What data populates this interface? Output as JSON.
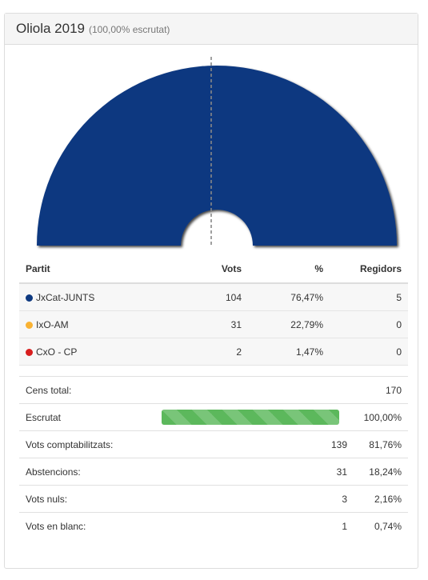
{
  "header": {
    "title": "Oliola 2019",
    "subtitle": "(100,00% escrutat)"
  },
  "chart_data": {
    "type": "pie",
    "subtype": "parliament-semicircle",
    "categories": [
      "JxCat-JUNTS",
      "IxO-AM",
      "CxO - CP"
    ],
    "values": [
      5,
      0,
      0
    ],
    "colors": [
      "#0e3980",
      "#f9b233",
      "#d81e1e"
    ],
    "total_seats": 5
  },
  "results": {
    "headers": {
      "party": "Partit",
      "votes": "Vots",
      "percent": "%",
      "seats": "Regidors"
    },
    "rows": [
      {
        "party": "JxCat-JUNTS",
        "color": "#0e3980",
        "votes": "104",
        "percent": "76,47%",
        "seats": "5"
      },
      {
        "party": "IxO-AM",
        "color": "#f9b233",
        "votes": "31",
        "percent": "22,79%",
        "seats": "0"
      },
      {
        "party": "CxO - CP",
        "color": "#d81e1e",
        "votes": "2",
        "percent": "1,47%",
        "seats": "0"
      }
    ]
  },
  "stats": {
    "census_label": "Cens total:",
    "census_value": "170",
    "scrutiny_label": "Escrutat",
    "scrutiny_value": "100,00%",
    "scrutiny_fraction": 1.0,
    "counted_label": "Vots comptabilitzats:",
    "counted_votes": "139",
    "counted_pct": "81,76%",
    "abst_label": "Abstencions:",
    "abst_votes": "31",
    "abst_pct": "18,24%",
    "null_label": "Vots nuls:",
    "null_votes": "3",
    "null_pct": "2,16%",
    "blank_label": "Vots en blanc:",
    "blank_votes": "1",
    "blank_pct": "0,74%"
  }
}
